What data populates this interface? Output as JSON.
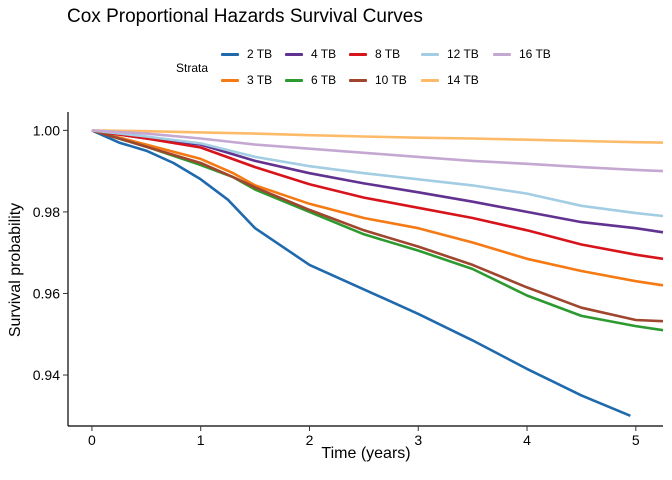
{
  "chart_data": {
    "type": "line",
    "title": "Cox Proportional Hazards Survival Curves",
    "xlabel": "Time (years)",
    "ylabel": "Survival probability",
    "xlim": [
      -0.22,
      5.25
    ],
    "ylim": [
      0.9275,
      1.0045
    ],
    "x_ticks": [
      0,
      1,
      2,
      3,
      4,
      5
    ],
    "y_ticks": [
      0.94,
      0.96,
      0.98,
      1.0
    ],
    "x_tick_labels": [
      "0",
      "1",
      "2",
      "3",
      "4",
      "5"
    ],
    "y_tick_labels": [
      "0.94",
      "0.96",
      "0.98",
      "1.00"
    ],
    "grid": false,
    "legend": {
      "title": "Strata",
      "placement": "top"
    },
    "series": [
      {
        "name": "2 TB",
        "color": "#1f69ad",
        "x": [
          0,
          0.25,
          0.5,
          0.75,
          1.0,
          1.25,
          1.5,
          2.0,
          2.5,
          3.0,
          3.5,
          4.0,
          4.5,
          4.95
        ],
        "y": [
          1.0,
          0.997,
          0.995,
          0.992,
          0.988,
          0.983,
          0.976,
          0.967,
          0.961,
          0.955,
          0.9485,
          0.9415,
          0.935,
          0.93
        ]
      },
      {
        "name": "3 TB",
        "color": "#f57a14",
        "x": [
          0,
          0.5,
          1.0,
          1.3,
          1.5,
          2.0,
          2.5,
          3.0,
          3.5,
          4.0,
          4.5,
          5.0,
          5.25
        ],
        "y": [
          1.0,
          0.9965,
          0.993,
          0.9895,
          0.9865,
          0.982,
          0.9785,
          0.976,
          0.9725,
          0.9685,
          0.9655,
          0.963,
          0.962
        ]
      },
      {
        "name": "4 TB",
        "color": "#613290",
        "x": [
          0,
          0.5,
          1.0,
          1.5,
          2.0,
          2.5,
          3.0,
          3.5,
          4.0,
          4.5,
          5.0,
          5.25
        ],
        "y": [
          1.0,
          0.998,
          0.9965,
          0.9925,
          0.9895,
          0.987,
          0.9848,
          0.9825,
          0.98,
          0.9775,
          0.976,
          0.975
        ]
      },
      {
        "name": "6 TB",
        "color": "#2d9a30",
        "x": [
          0,
          0.5,
          1.0,
          1.3,
          1.5,
          2.0,
          2.5,
          3.0,
          3.5,
          4.0,
          4.5,
          5.0,
          5.25
        ],
        "y": [
          1.0,
          0.996,
          0.9915,
          0.9885,
          0.9855,
          0.98,
          0.9745,
          0.9705,
          0.966,
          0.9595,
          0.9545,
          0.952,
          0.951
        ]
      },
      {
        "name": "8 TB",
        "color": "#d7141c",
        "x": [
          0,
          0.5,
          1.0,
          1.5,
          2.0,
          2.5,
          3.0,
          3.5,
          4.0,
          4.5,
          5.0,
          5.25
        ],
        "y": [
          1.0,
          0.998,
          0.9958,
          0.991,
          0.9868,
          0.9835,
          0.981,
          0.9785,
          0.9755,
          0.972,
          0.9695,
          0.9685
        ]
      },
      {
        "name": "10 TB",
        "color": "#a0462e",
        "x": [
          0,
          0.5,
          1.0,
          1.3,
          1.5,
          2.0,
          2.5,
          3.0,
          3.5,
          4.0,
          4.5,
          5.0,
          5.25
        ],
        "y": [
          1.0,
          0.996,
          0.992,
          0.9885,
          0.986,
          0.9805,
          0.9755,
          0.9715,
          0.967,
          0.9615,
          0.9565,
          0.9535,
          0.9532
        ]
      },
      {
        "name": "12 TB",
        "color": "#a3cde3",
        "x": [
          0,
          0.5,
          1.0,
          1.5,
          2.0,
          2.5,
          3.0,
          3.5,
          4.0,
          4.5,
          5.0,
          5.25
        ],
        "y": [
          1.0,
          0.9985,
          0.9968,
          0.9935,
          0.9912,
          0.9895,
          0.988,
          0.9865,
          0.9845,
          0.9815,
          0.9797,
          0.979
        ]
      },
      {
        "name": "14 TB",
        "color": "#fdbb6a",
        "x": [
          0,
          0.5,
          1.0,
          1.5,
          2.0,
          2.5,
          3.0,
          3.5,
          4.0,
          4.5,
          5.0,
          5.25
        ],
        "y": [
          1.0,
          0.9998,
          0.9995,
          0.9992,
          0.9988,
          0.9985,
          0.9982,
          0.998,
          0.9977,
          0.9974,
          0.9971,
          0.997
        ]
      },
      {
        "name": "16 TB",
        "color": "#c5a8d2",
        "x": [
          0,
          0.5,
          1.0,
          1.5,
          2.0,
          2.5,
          3.0,
          3.5,
          4.0,
          4.5,
          5.0,
          5.25
        ],
        "y": [
          1.0,
          0.9992,
          0.998,
          0.9965,
          0.9955,
          0.9945,
          0.9935,
          0.9925,
          0.9918,
          0.991,
          0.9903,
          0.99
        ]
      }
    ]
  }
}
